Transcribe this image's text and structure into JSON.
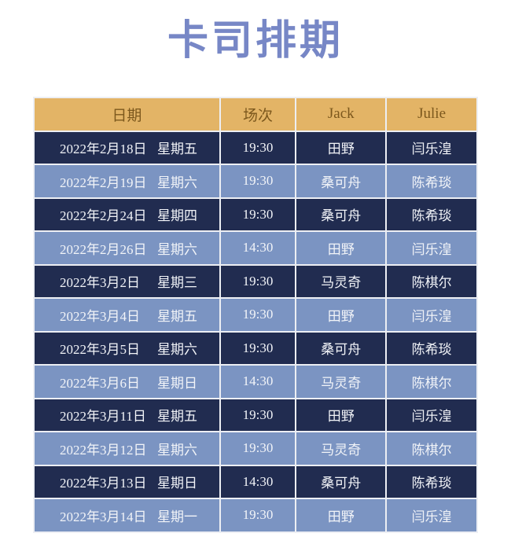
{
  "page": {
    "title": "卡司排期"
  },
  "colors": {
    "title": "#7787c6",
    "header_bg": "#e3b466",
    "header_text": "#7c581d",
    "row_dark_bg": "#212c50",
    "row_light_bg": "#7b94c2",
    "row_text": "#f2f4f8",
    "grid_line": "#edeff4",
    "page_bg": "#ffffff"
  },
  "table": {
    "columns": [
      {
        "key": "date",
        "label": "日期"
      },
      {
        "key": "session",
        "label": "场次"
      },
      {
        "key": "jack",
        "label": "Jack"
      },
      {
        "key": "julie",
        "label": "Julie"
      }
    ],
    "rows": [
      {
        "date": "2022年2月18日",
        "weekday": "星期五",
        "session": "19:30",
        "jack": "田野",
        "julie": "闫乐湟"
      },
      {
        "date": "2022年2月19日",
        "weekday": "星期六",
        "session": "19:30",
        "jack": "桑可舟",
        "julie": "陈希琰"
      },
      {
        "date": "2022年2月24日",
        "weekday": "星期四",
        "session": "19:30",
        "jack": "桑可舟",
        "julie": "陈希琰"
      },
      {
        "date": "2022年2月26日",
        "weekday": "星期六",
        "session": "14:30",
        "jack": "田野",
        "julie": "闫乐湟"
      },
      {
        "date": "2022年3月2日",
        "weekday": "星期三",
        "session": "19:30",
        "jack": "马灵奇",
        "julie": "陈棋尔"
      },
      {
        "date": "2022年3月4日",
        "weekday": "星期五",
        "session": "19:30",
        "jack": "田野",
        "julie": "闫乐湟"
      },
      {
        "date": "2022年3月5日",
        "weekday": "星期六",
        "session": "19:30",
        "jack": "桑可舟",
        "julie": "陈希琰"
      },
      {
        "date": "2022年3月6日",
        "weekday": "星期日",
        "session": "14:30",
        "jack": "马灵奇",
        "julie": "陈棋尔"
      },
      {
        "date": "2022年3月11日",
        "weekday": "星期五",
        "session": "19:30",
        "jack": "田野",
        "julie": "闫乐湟"
      },
      {
        "date": "2022年3月12日",
        "weekday": "星期六",
        "session": "19:30",
        "jack": "马灵奇",
        "julie": "陈棋尔"
      },
      {
        "date": "2022年3月13日",
        "weekday": "星期日",
        "session": "14:30",
        "jack": "桑可舟",
        "julie": "陈希琰"
      },
      {
        "date": "2022年3月14日",
        "weekday": "星期一",
        "session": "19:30",
        "jack": "田野",
        "julie": "闫乐湟"
      }
    ]
  }
}
